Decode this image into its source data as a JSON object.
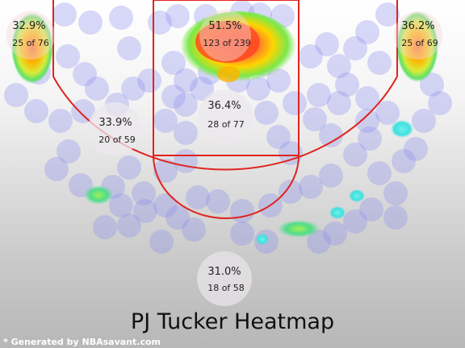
{
  "chart_data": {
    "type": "heatmap",
    "title": "PJ Tucker Heatmap",
    "credit": "* Generated by NBAsavant.com",
    "zones": [
      {
        "id": "left-corner-three",
        "pct": "32.9%",
        "made_of": "25 of 76"
      },
      {
        "id": "restricted-area",
        "pct": "51.5%",
        "made_of": "123 of 239"
      },
      {
        "id": "right-corner-three",
        "pct": "36.2%",
        "made_of": "25 of 69"
      },
      {
        "id": "paint",
        "pct": "36.4%",
        "made_of": "28 of 77"
      },
      {
        "id": "left-midrange",
        "pct": "33.9%",
        "made_of": "20 of 59"
      },
      {
        "id": "top-three",
        "pct": "31.0%",
        "made_of": "18 of 58"
      }
    ]
  },
  "colors": {
    "court_line": "#e0231e",
    "shot_bubble": "#8a8cf0",
    "hot": "#ff5a2a",
    "warm": "#ffd400",
    "mid": "#7be84a",
    "cool": "#3fe0e0"
  }
}
